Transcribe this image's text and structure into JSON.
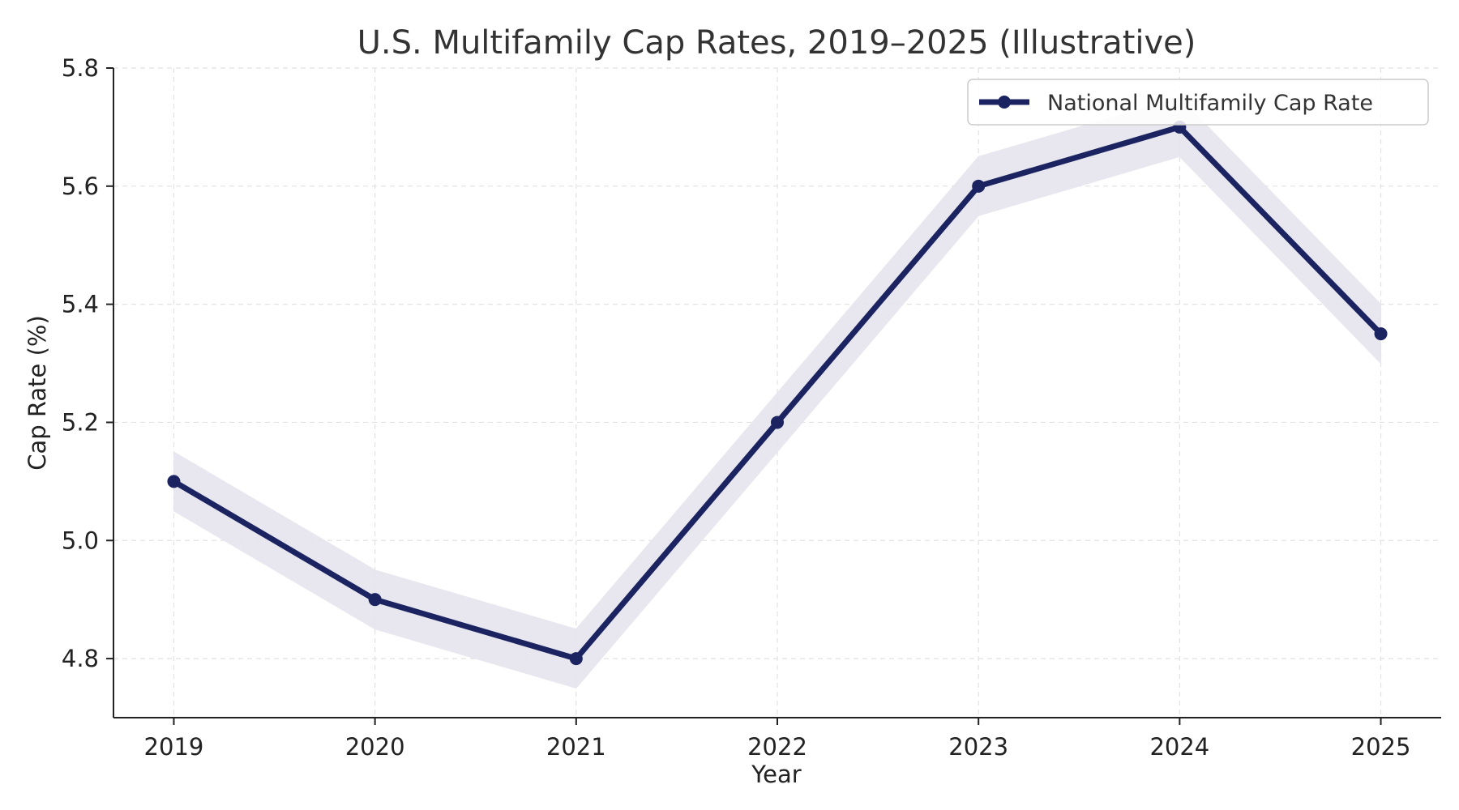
{
  "chart_data": {
    "type": "line",
    "title": "U.S. Multifamily Cap Rates, 2019–2025 (Illustrative)",
    "xlabel": "Year",
    "ylabel": "Cap Rate (%)",
    "x": [
      2019,
      2020,
      2021,
      2022,
      2023,
      2024,
      2025
    ],
    "x_tick_labels": [
      "2019",
      "2020",
      "2021",
      "2022",
      "2023",
      "2024",
      "2025"
    ],
    "y_ticks": [
      4.8,
      5.0,
      5.2,
      5.4,
      5.6,
      5.8
    ],
    "y_tick_labels": [
      "4.8",
      "5.0",
      "5.2",
      "5.4",
      "5.6",
      "5.8"
    ],
    "xlim": [
      2018.7,
      2025.3
    ],
    "ylim": [
      4.7,
      5.8
    ],
    "grid": true,
    "legend_position": "top-right",
    "series": [
      {
        "name": "National Multifamily Cap Rate",
        "values": [
          5.1,
          4.9,
          4.8,
          5.2,
          5.6,
          5.7,
          5.35
        ],
        "band_lower": [
          5.05,
          4.85,
          4.75,
          5.15,
          5.55,
          5.65,
          5.3
        ],
        "band_upper": [
          5.15,
          4.95,
          4.85,
          5.25,
          5.65,
          5.75,
          5.4
        ],
        "color": "#1b2460",
        "band_color": "#e6e5ee"
      }
    ]
  }
}
